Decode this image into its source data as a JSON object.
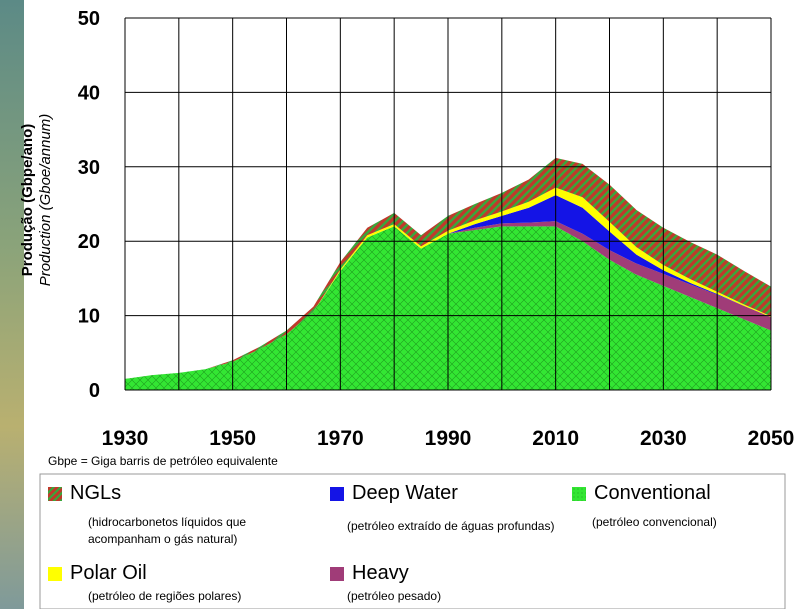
{
  "chart_data": {
    "type": "stacked_area",
    "y_label": "Produção (Gbpe/ano)",
    "y_label_en": "Production (Gboe/annum)",
    "note": "Gbpe = Giga barris de petróleo equivalente",
    "x": [
      1930,
      1935,
      1940,
      1945,
      1950,
      1955,
      1960,
      1965,
      1970,
      1975,
      1980,
      1985,
      1990,
      1995,
      2000,
      2005,
      2010,
      2015,
      2020,
      2025,
      2030,
      2035,
      2040,
      2045,
      2050
    ],
    "xlim": [
      1930,
      2050
    ],
    "xticks": [
      1930,
      1950,
      1970,
      1990,
      2010,
      2030,
      2050
    ],
    "xgrid": [
      1930,
      1940,
      1950,
      1960,
      1970,
      1980,
      1990,
      2000,
      2010,
      2020,
      2030,
      2040,
      2050
    ],
    "ylim": [
      0,
      50
    ],
    "yticks": [
      0,
      10,
      20,
      30,
      40,
      50
    ],
    "grid": true,
    "series": [
      {
        "name": "Conventional",
        "description": "(petróleo convencional)",
        "color": "#33e633",
        "values": [
          1.5,
          2,
          2.3,
          2.8,
          3.8,
          5.5,
          7.5,
          10.5,
          16,
          20.5,
          22,
          19,
          21,
          21.5,
          22,
          22,
          22,
          20,
          17.5,
          15.5,
          14,
          12.5,
          11,
          9.5,
          8
        ]
      },
      {
        "name": "Heavy",
        "description": "(petróleo pesado)",
        "color": "#a03c78",
        "values": [
          0,
          0,
          0,
          0,
          0,
          0,
          0,
          0,
          0,
          0,
          0,
          0,
          0,
          0.3,
          0.4,
          0.5,
          0.7,
          1,
          1.3,
          1.5,
          1.6,
          1.7,
          1.8,
          1.8,
          1.8
        ]
      },
      {
        "name": "Deep Water",
        "description": "(petróleo extraído de águas profundas)",
        "color": "#1414e6",
        "values": [
          0,
          0,
          0,
          0,
          0,
          0,
          0,
          0,
          0,
          0,
          0,
          0,
          0,
          0.5,
          1,
          2,
          3.5,
          3.5,
          2.5,
          1.2,
          0.5,
          0.2,
          0.1,
          0,
          0
        ]
      },
      {
        "name": "Polar Oil",
        "description": "(petróleo de regiões polares)",
        "color": "#ffff00",
        "values": [
          0,
          0,
          0,
          0,
          0,
          0,
          0,
          0,
          0.2,
          0.3,
          0.3,
          0.3,
          0.4,
          0.5,
          0.6,
          0.8,
          1,
          1.4,
          1.3,
          1,
          0.7,
          0.5,
          0.3,
          0.2,
          0.1
        ]
      },
      {
        "name": "NGLs",
        "description": "(hidrocarbonetos líquidos que acompanham o gás natural)",
        "color": "#c0392b",
        "values": [
          0,
          0,
          0,
          0,
          0.2,
          0.3,
          0.5,
          0.7,
          1,
          1,
          1.5,
          1.5,
          2,
          2.2,
          2.5,
          3,
          4,
          4.5,
          5,
          5,
          5,
          5,
          5,
          4.5,
          4
        ]
      }
    ]
  }
}
